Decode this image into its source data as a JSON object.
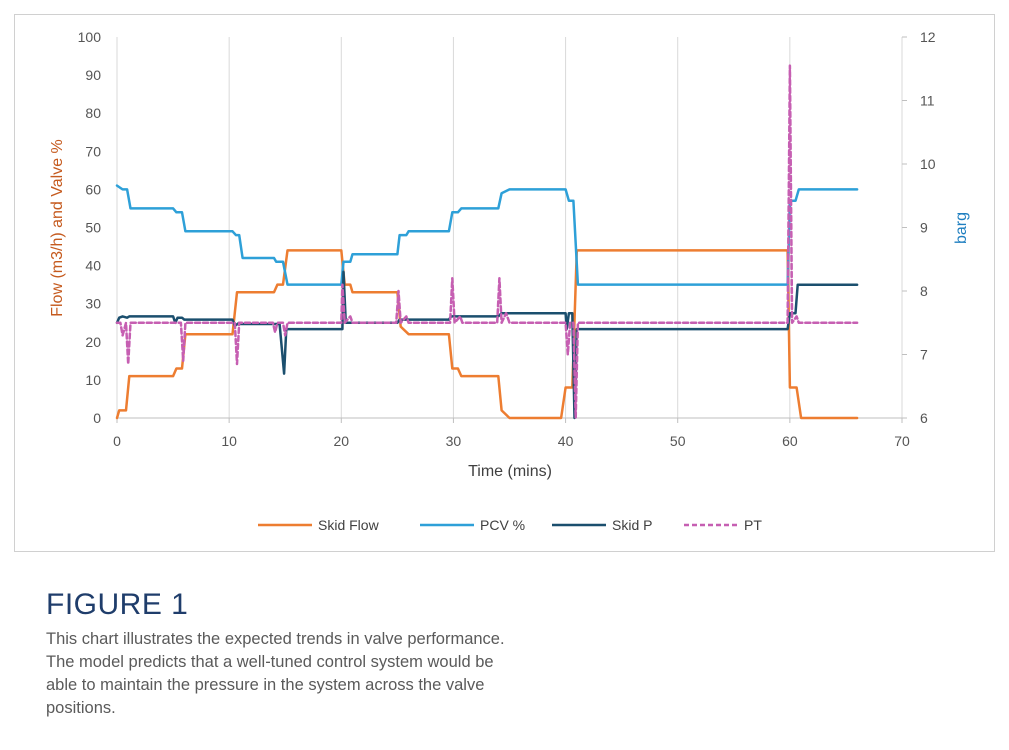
{
  "figure": {
    "title": "FIGURE 1",
    "caption_lines": [
      "This chart illustrates the expected trends in valve performance.",
      "The model predicts that a well-tuned control system would be",
      "able to maintain the pressure in the system across the valve",
      "positions."
    ]
  },
  "chart_data": {
    "type": "line",
    "x_axis": {
      "label": "Time (mins)",
      "min": 0,
      "max": 70,
      "ticks": [
        0,
        10,
        20,
        30,
        40,
        50,
        60,
        70
      ]
    },
    "y_left": {
      "label": "Flow (m3/h) and Valve %",
      "min": 0,
      "max": 100,
      "ticks": [
        0,
        10,
        20,
        30,
        40,
        50,
        60,
        70,
        80,
        90,
        100
      ],
      "color": "#c55a1e"
    },
    "y_right": {
      "label": "barg",
      "min": 6,
      "max": 12,
      "ticks": [
        6,
        7,
        8,
        9,
        10,
        11,
        12
      ],
      "color": "#1f7fc0"
    },
    "grid": "vertical",
    "legend_position": "bottom",
    "series": [
      {
        "name": "Skid Flow",
        "axis": "left",
        "color": "#ed7d31",
        "dash": "",
        "points": [
          [
            0,
            0
          ],
          [
            0.2,
            2
          ],
          [
            0.8,
            2
          ],
          [
            1.1,
            11
          ],
          [
            5,
            11
          ],
          [
            5.3,
            13
          ],
          [
            5.8,
            13
          ],
          [
            6.1,
            22
          ],
          [
            10.3,
            22
          ],
          [
            10.7,
            33
          ],
          [
            14,
            33
          ],
          [
            14.3,
            35
          ],
          [
            14.8,
            35
          ],
          [
            15.2,
            44
          ],
          [
            20,
            44
          ],
          [
            20.3,
            35
          ],
          [
            20.8,
            35
          ],
          [
            21,
            33
          ],
          [
            25,
            33
          ],
          [
            25.3,
            24
          ],
          [
            26,
            22
          ],
          [
            29.6,
            22
          ],
          [
            29.9,
            13
          ],
          [
            30.4,
            13
          ],
          [
            30.7,
            11
          ],
          [
            34,
            11
          ],
          [
            34.3,
            2
          ],
          [
            35,
            0
          ],
          [
            39.6,
            0
          ],
          [
            40,
            8
          ],
          [
            40.6,
            8
          ],
          [
            41,
            44
          ],
          [
            59.8,
            44
          ],
          [
            60,
            8
          ],
          [
            60.6,
            8
          ],
          [
            61,
            0
          ],
          [
            66,
            0
          ]
        ]
      },
      {
        "name": "PCV %",
        "axis": "left",
        "color": "#2ea0d8",
        "dash": "",
        "points": [
          [
            0,
            61
          ],
          [
            0.5,
            60
          ],
          [
            0.9,
            60
          ],
          [
            1.2,
            55
          ],
          [
            5,
            55
          ],
          [
            5.3,
            54
          ],
          [
            5.8,
            54
          ],
          [
            6.1,
            49
          ],
          [
            10.3,
            49
          ],
          [
            10.6,
            48
          ],
          [
            10.9,
            48
          ],
          [
            11.2,
            42
          ],
          [
            14,
            42
          ],
          [
            14.2,
            41
          ],
          [
            14.8,
            41
          ],
          [
            15.2,
            35
          ],
          [
            20,
            35
          ],
          [
            20.2,
            41
          ],
          [
            20.8,
            41
          ],
          [
            21,
            43
          ],
          [
            25,
            43
          ],
          [
            25.2,
            48
          ],
          [
            25.8,
            48
          ],
          [
            26,
            49
          ],
          [
            29.6,
            49
          ],
          [
            29.9,
            54
          ],
          [
            30.4,
            54
          ],
          [
            30.7,
            55
          ],
          [
            34,
            55
          ],
          [
            34.3,
            59
          ],
          [
            35,
            60
          ],
          [
            40,
            60
          ],
          [
            40.3,
            57
          ],
          [
            40.7,
            57
          ],
          [
            41.1,
            35
          ],
          [
            59.8,
            35
          ],
          [
            60,
            57
          ],
          [
            60.5,
            57
          ],
          [
            60.8,
            60
          ],
          [
            66,
            60
          ]
        ]
      },
      {
        "name": "Skid P",
        "axis": "right",
        "color": "#1b4f6e",
        "dash": "",
        "points": [
          [
            0,
            7.5
          ],
          [
            0.2,
            7.58
          ],
          [
            0.5,
            7.6
          ],
          [
            0.9,
            7.58
          ],
          [
            1.1,
            7.6
          ],
          [
            5,
            7.6
          ],
          [
            5.2,
            7.5
          ],
          [
            5.4,
            7.58
          ],
          [
            5.8,
            7.58
          ],
          [
            6,
            7.55
          ],
          [
            10.3,
            7.55
          ],
          [
            10.5,
            7.45
          ],
          [
            10.9,
            7.5
          ],
          [
            11,
            7.48
          ],
          [
            14.5,
            7.48
          ],
          [
            14.9,
            6.7
          ],
          [
            15.1,
            7.4
          ],
          [
            20.1,
            7.4
          ],
          [
            20.2,
            8.3
          ],
          [
            20.4,
            7.5
          ],
          [
            25,
            7.5
          ],
          [
            25.2,
            7.55
          ],
          [
            29.6,
            7.55
          ],
          [
            29.8,
            7.6
          ],
          [
            34,
            7.6
          ],
          [
            34.3,
            7.65
          ],
          [
            40,
            7.65
          ],
          [
            40.1,
            7.4
          ],
          [
            40.3,
            7.65
          ],
          [
            40.6,
            7.65
          ],
          [
            40.8,
            6
          ],
          [
            41,
            7.4
          ],
          [
            59.8,
            7.4
          ],
          [
            60,
            7.65
          ],
          [
            60.5,
            7.65
          ],
          [
            60.7,
            8.1
          ],
          [
            66,
            8.1
          ]
        ]
      },
      {
        "name": "PT",
        "axis": "right",
        "color": "#c65fb2",
        "dash": "5,3",
        "points": [
          [
            0,
            7.5
          ],
          [
            0.3,
            7.5
          ],
          [
            0.5,
            7.3
          ],
          [
            0.8,
            7.5
          ],
          [
            1,
            6.85
          ],
          [
            1.2,
            7.5
          ],
          [
            5.7,
            7.5
          ],
          [
            5.9,
            6.9
          ],
          [
            6.1,
            7.5
          ],
          [
            10.5,
            7.5
          ],
          [
            10.7,
            6.85
          ],
          [
            10.9,
            7.5
          ],
          [
            13.9,
            7.5
          ],
          [
            14.1,
            7.35
          ],
          [
            14.3,
            7.5
          ],
          [
            14.8,
            7.5
          ],
          [
            15,
            7.3
          ],
          [
            15.2,
            7.5
          ],
          [
            20,
            7.5
          ],
          [
            20.1,
            8.1
          ],
          [
            20.3,
            7.5
          ],
          [
            20.8,
            7.6
          ],
          [
            21,
            7.5
          ],
          [
            24.9,
            7.5
          ],
          [
            25.1,
            8.0
          ],
          [
            25.3,
            7.5
          ],
          [
            25.8,
            7.6
          ],
          [
            26,
            7.5
          ],
          [
            29.7,
            7.5
          ],
          [
            29.9,
            8.2
          ],
          [
            30.1,
            7.5
          ],
          [
            30.6,
            7.6
          ],
          [
            30.8,
            7.5
          ],
          [
            33.9,
            7.5
          ],
          [
            34.1,
            8.2
          ],
          [
            34.3,
            7.5
          ],
          [
            34.7,
            7.65
          ],
          [
            35,
            7.5
          ],
          [
            40,
            7.5
          ],
          [
            40.2,
            7.0
          ],
          [
            40.4,
            7.5
          ],
          [
            40.7,
            7.5
          ],
          [
            40.9,
            6
          ],
          [
            41.1,
            7.5
          ],
          [
            59.8,
            7.5
          ],
          [
            60,
            11.55
          ],
          [
            60.2,
            7.5
          ],
          [
            60.6,
            7.6
          ],
          [
            60.8,
            7.5
          ],
          [
            66,
            7.5
          ]
        ]
      }
    ]
  }
}
